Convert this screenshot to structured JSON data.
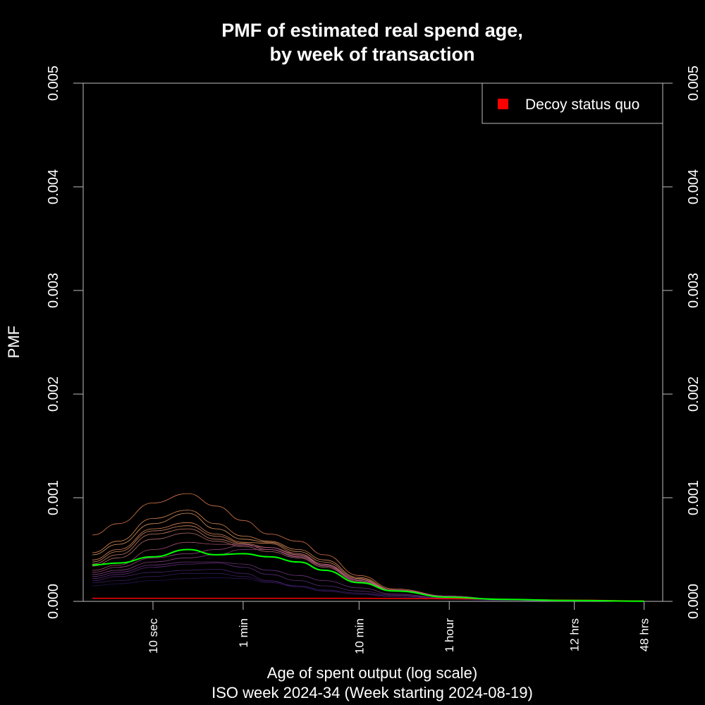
{
  "chart_data": {
    "type": "line",
    "title_line1": "PMF of estimated real spend age,",
    "title_line2": "by week of transaction",
    "xlabel": "Age of spent output (log scale)",
    "subtitle": "ISO week 2024-34 (Week starting 2024-08-19)",
    "ylabel": "PMF",
    "x_scale": "log",
    "x_unit": "seconds",
    "xlim": [
      2.5,
      250000
    ],
    "ylim": [
      0,
      0.005
    ],
    "x_ticks": [
      {
        "label": "10 sec",
        "value": 10
      },
      {
        "label": "1 min",
        "value": 60
      },
      {
        "label": "10 min",
        "value": 600
      },
      {
        "label": "1 hour",
        "value": 3600
      },
      {
        "label": "12 hrs",
        "value": 43200
      },
      {
        "label": "48 hrs",
        "value": 172800
      }
    ],
    "y_ticks": [
      "0.000",
      "0.001",
      "0.002",
      "0.003",
      "0.004",
      "0.005"
    ],
    "y_tick_values": [
      0,
      0.001,
      0.002,
      0.003,
      0.004,
      0.005
    ],
    "legend": {
      "position": "top-right",
      "label": "Decoy status quo",
      "color": "#ff0000"
    },
    "colors": {
      "highlight": "#00ff00",
      "decoy": "#ff0000",
      "axis": "#bebebe"
    },
    "decoy_series": {
      "x": [
        3,
        10,
        60,
        600,
        3600,
        43200,
        172800
      ],
      "y": [
        3e-05,
        3e-05,
        3e-05,
        3e-05,
        2.5e-05,
        1.2e-05,
        4e-06
      ]
    },
    "highlight_series": {
      "x": [
        3,
        5,
        10,
        20,
        35,
        60,
        100,
        180,
        300,
        600,
        1200,
        3600,
        10000,
        43200,
        172800
      ],
      "y": [
        0.00035,
        0.00037,
        0.00043,
        0.0005,
        0.00045,
        0.00046,
        0.00043,
        0.00038,
        0.0003,
        0.00018,
        0.0001,
        4e-05,
        2e-05,
        8e-06,
        2e-06
      ]
    },
    "series": [
      {
        "color": "#ff8c5a",
        "y": [
          0.00064,
          0.00075,
          0.00095,
          0.00104,
          0.00092,
          0.00078,
          0.00065,
          0.00058,
          0.00045,
          0.00025,
          0.00012,
          5e-05,
          2e-05,
          8e-06,
          2e-06
        ]
      },
      {
        "color": "#ffa060",
        "y": [
          0.00047,
          0.00058,
          0.0008,
          0.00088,
          0.00075,
          0.00063,
          0.00058,
          0.0005,
          0.0004,
          0.00023,
          0.00011,
          5e-05,
          2e-05,
          8e-06,
          2e-06
        ]
      },
      {
        "color": "#ffb070",
        "y": [
          0.00045,
          0.00055,
          0.00075,
          0.00085,
          0.0007,
          0.0006,
          0.00057,
          0.00048,
          0.00038,
          0.00022,
          0.0001,
          4e-05,
          2e-05,
          8e-06,
          2e-06
        ]
      },
      {
        "color": "#ff9a66",
        "y": [
          0.0004,
          0.0005,
          0.0007,
          0.00076,
          0.00065,
          0.00057,
          0.00056,
          0.00046,
          0.00036,
          0.00021,
          0.0001,
          4e-05,
          2e-05,
          7e-06,
          2e-06
        ]
      },
      {
        "color": "#f5a070",
        "y": [
          0.00038,
          0.00048,
          0.00068,
          0.00073,
          0.00063,
          0.00056,
          0.00052,
          0.00045,
          0.00035,
          0.0002,
          0.0001,
          4e-05,
          2e-05,
          7e-06,
          2e-06
        ]
      },
      {
        "color": "#e89070",
        "y": [
          0.00036,
          0.00045,
          0.00065,
          0.0007,
          0.0006,
          0.00055,
          0.0005,
          0.00043,
          0.00034,
          0.0002,
          0.0001,
          4e-05,
          2e-05,
          7e-06,
          2e-06
        ]
      },
      {
        "color": "#d0807a",
        "y": [
          0.00034,
          0.00042,
          0.0006,
          0.00066,
          0.00058,
          0.00053,
          0.00048,
          0.00042,
          0.00033,
          0.00019,
          0.0001,
          4e-05,
          2e-05,
          7e-06,
          2e-06
        ]
      },
      {
        "color": "#c06080",
        "y": [
          0.0003,
          0.00035,
          0.0005,
          0.00057,
          0.00055,
          0.00055,
          0.0005,
          0.00044,
          0.00035,
          0.0002,
          0.0001,
          5e-05,
          2e-05,
          7e-06,
          2e-06
        ]
      },
      {
        "color": "#b05090",
        "y": [
          0.00028,
          0.00033,
          0.00042,
          0.00046,
          0.0005,
          0.00054,
          0.00052,
          0.00046,
          0.00036,
          0.00021,
          0.00011,
          5e-05,
          2e-05,
          7e-06,
          2e-06
        ]
      },
      {
        "color": "#9a4a90",
        "y": [
          0.00026,
          0.0003,
          0.00038,
          0.00042,
          0.00045,
          0.0005,
          0.0005,
          0.00043,
          0.00034,
          0.0002,
          0.0001,
          5e-05,
          2e-05,
          7e-06,
          2e-06
        ]
      },
      {
        "color": "#803c90",
        "y": [
          0.00024,
          0.00028,
          0.00035,
          0.00038,
          0.00038,
          0.00036,
          0.0003,
          0.00025,
          0.0002,
          0.00013,
          7e-05,
          3e-05,
          1e-05,
          5e-06,
          1e-06
        ]
      },
      {
        "color": "#6a3088",
        "y": [
          0.00022,
          0.00026,
          0.00033,
          0.00036,
          0.00037,
          0.00033,
          0.00026,
          0.0002,
          0.00015,
          0.0001,
          6e-05,
          3e-05,
          1e-05,
          5e-06,
          1e-06
        ]
      },
      {
        "color": "#55287a",
        "y": [
          0.0002,
          0.00024,
          0.00028,
          0.0003,
          0.00031,
          0.00027,
          0.0002,
          0.00014,
          0.0001,
          7e-05,
          5e-05,
          3e-05,
          1e-05,
          5e-06,
          1e-06
        ]
      },
      {
        "color": "#3e1e6a",
        "y": [
          0.00018,
          0.0002,
          0.00024,
          0.00027,
          0.00027,
          0.00024,
          0.00019,
          0.00015,
          0.00011,
          8e-05,
          5e-05,
          2e-05,
          1e-05,
          4e-06,
          1e-06
        ]
      },
      {
        "color": "#2a1658",
        "y": [
          0.00015,
          0.00017,
          0.0002,
          0.00022,
          0.00023,
          0.00022,
          0.00018,
          0.00014,
          0.0001,
          7e-05,
          4e-05,
          2e-05,
          1e-05,
          4e-06,
          1e-06
        ]
      }
    ]
  }
}
